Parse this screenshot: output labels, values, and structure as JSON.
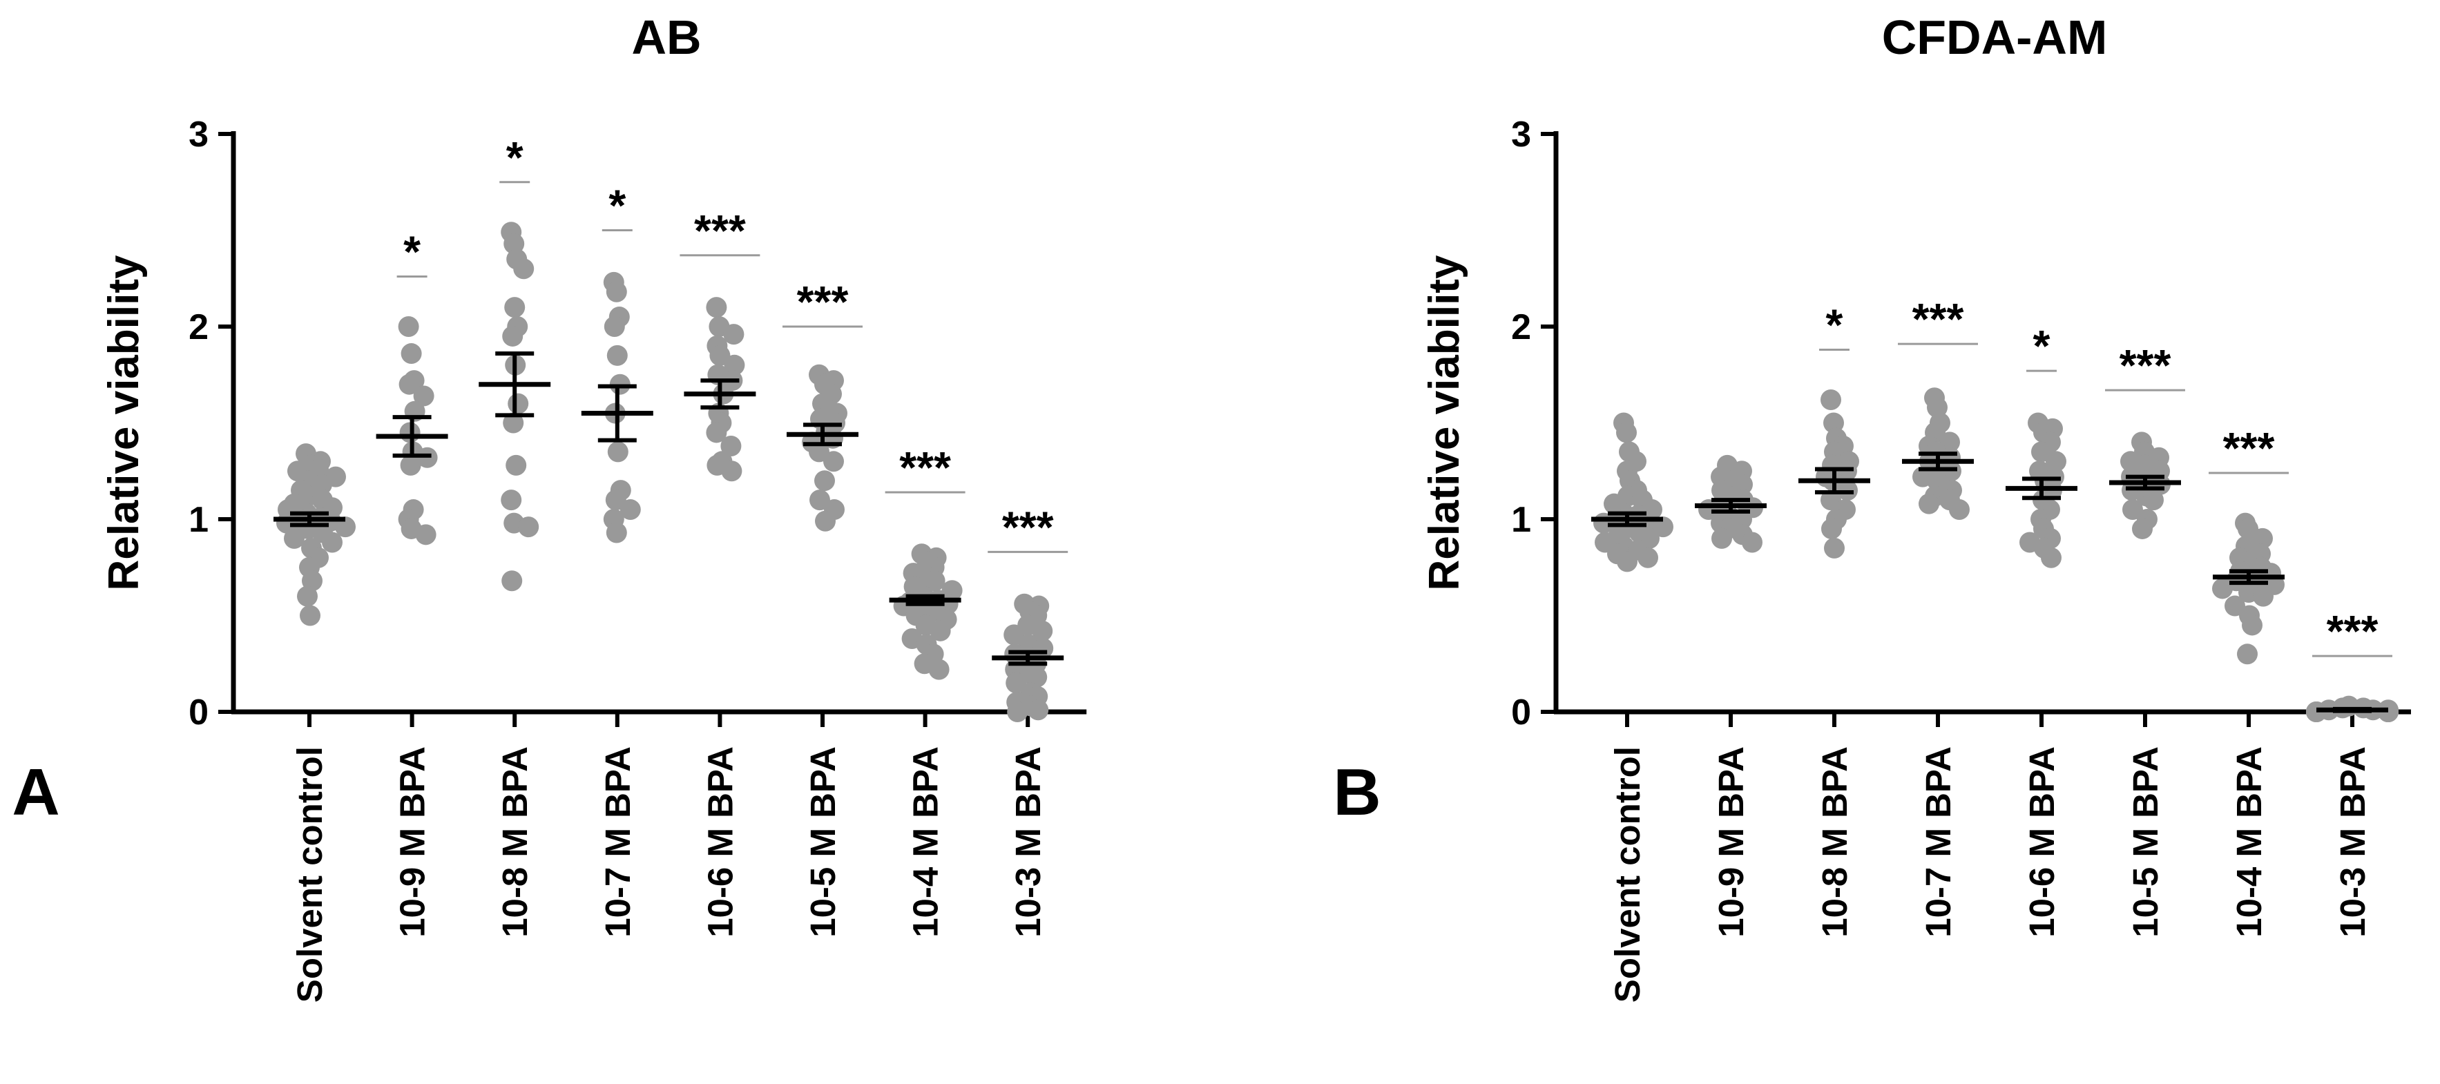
{
  "chart_data": [
    {
      "panel_label": "A",
      "title": "AB",
      "type": "scatter",
      "ylabel": "Relative viability",
      "ylim": [
        0,
        3
      ],
      "yticks": [
        "0",
        "1",
        "2",
        "3"
      ],
      "categories": [
        "Solvent control",
        "10-9 M BPA",
        "10-8 M BPA",
        "10-7 M BPA",
        "10-6 M BPA",
        "10-5 M BPA",
        "10-4 M BPA",
        "10-3 M BPA"
      ],
      "means": [
        1.0,
        1.43,
        1.7,
        1.55,
        1.65,
        1.44,
        0.58,
        0.28
      ],
      "sem": [
        0.03,
        0.1,
        0.16,
        0.14,
        0.07,
        0.05,
        0.02,
        0.03
      ],
      "significance": [
        "",
        "*",
        "*",
        "*",
        "***",
        "***",
        "***",
        "***"
      ],
      "sig_line_y": [
        null,
        2.26,
        2.75,
        2.5,
        2.37,
        2.0,
        1.14,
        0.83
      ],
      "points": [
        [
          1.34,
          1.3,
          1.28,
          1.26,
          1.25,
          1.22,
          1.2,
          1.18,
          1.15,
          1.12,
          1.1,
          1.08,
          1.06,
          1.05,
          1.03,
          1.01,
          1.0,
          0.99,
          0.98,
          0.96,
          0.95,
          0.93,
          0.9,
          0.88,
          0.85,
          0.8,
          0.75,
          0.68,
          0.6,
          0.5
        ],
        [
          2.0,
          1.86,
          1.72,
          1.7,
          1.64,
          1.56,
          1.45,
          1.35,
          1.32,
          1.28,
          1.05,
          1.0,
          0.95,
          0.92
        ],
        [
          2.49,
          2.43,
          2.35,
          2.3,
          2.1,
          2.0,
          1.95,
          1.8,
          1.6,
          1.5,
          1.28,
          1.1,
          0.98,
          0.96,
          0.68
        ],
        [
          2.23,
          2.18,
          2.05,
          2.0,
          1.85,
          1.7,
          1.55,
          1.35,
          1.15,
          1.1,
          1.05,
          1.0,
          0.93
        ],
        [
          2.1,
          2.0,
          1.96,
          1.9,
          1.85,
          1.8,
          1.75,
          1.72,
          1.65,
          1.55,
          1.5,
          1.45,
          1.38,
          1.3,
          1.28,
          1.25
        ],
        [
          1.75,
          1.72,
          1.7,
          1.65,
          1.6,
          1.55,
          1.52,
          1.5,
          1.45,
          1.42,
          1.4,
          1.35,
          1.3,
          1.2,
          1.1,
          1.05,
          0.99
        ],
        [
          0.82,
          0.8,
          0.78,
          0.75,
          0.72,
          0.7,
          0.68,
          0.65,
          0.63,
          0.6,
          0.58,
          0.57,
          0.56,
          0.55,
          0.53,
          0.52,
          0.5,
          0.48,
          0.45,
          0.42,
          0.38,
          0.35,
          0.3,
          0.25,
          0.22
        ],
        [
          0.56,
          0.55,
          0.52,
          0.5,
          0.45,
          0.42,
          0.4,
          0.35,
          0.33,
          0.3,
          0.28,
          0.25,
          0.22,
          0.2,
          0.18,
          0.15,
          0.1,
          0.08,
          0.05,
          0.03,
          0.01,
          0.0
        ]
      ]
    },
    {
      "panel_label": "B",
      "title": "CFDA-AM",
      "type": "scatter",
      "ylabel": "Relative viability",
      "ylim": [
        0,
        3
      ],
      "yticks": [
        "0",
        "1",
        "2",
        "3"
      ],
      "categories": [
        "Solvent control",
        "10-9 M BPA",
        "10-8 M BPA",
        "10-7 M BPA",
        "10-6 M BPA",
        "10-5 M BPA",
        "10-4 M BPA",
        "10-3 M BPA"
      ],
      "means": [
        1.0,
        1.07,
        1.2,
        1.3,
        1.16,
        1.19,
        0.7,
        0.01
      ],
      "sem": [
        0.03,
        0.03,
        0.06,
        0.04,
        0.05,
        0.03,
        0.03,
        0.005
      ],
      "significance": [
        "",
        "",
        "*",
        "***",
        "*",
        "***",
        "***",
        "***"
      ],
      "sig_line_y": [
        null,
        null,
        1.88,
        1.91,
        1.77,
        1.67,
        1.24,
        0.29
      ],
      "points": [
        [
          1.5,
          1.45,
          1.35,
          1.3,
          1.25,
          1.2,
          1.15,
          1.12,
          1.1,
          1.08,
          1.05,
          1.03,
          1.02,
          1.0,
          0.99,
          0.98,
          0.96,
          0.95,
          0.93,
          0.92,
          0.9,
          0.88,
          0.86,
          0.84,
          0.82,
          0.8,
          0.78
        ],
        [
          1.28,
          1.25,
          1.22,
          1.2,
          1.18,
          1.15,
          1.12,
          1.1,
          1.08,
          1.06,
          1.05,
          1.03,
          1.0,
          0.98,
          0.95,
          0.92,
          0.9,
          0.88
        ],
        [
          1.62,
          1.5,
          1.42,
          1.38,
          1.35,
          1.3,
          1.28,
          1.25,
          1.22,
          1.2,
          1.15,
          1.1,
          1.05,
          1.0,
          0.95,
          0.85
        ],
        [
          1.63,
          1.58,
          1.5,
          1.45,
          1.4,
          1.38,
          1.35,
          1.32,
          1.3,
          1.28,
          1.25,
          1.22,
          1.2,
          1.15,
          1.12,
          1.1,
          1.08,
          1.05
        ],
        [
          1.5,
          1.47,
          1.45,
          1.4,
          1.35,
          1.3,
          1.25,
          1.22,
          1.2,
          1.15,
          1.1,
          1.05,
          1.0,
          0.95,
          0.9,
          0.88,
          0.85,
          0.8
        ],
        [
          1.4,
          1.35,
          1.32,
          1.3,
          1.28,
          1.25,
          1.22,
          1.2,
          1.18,
          1.15,
          1.12,
          1.1,
          1.05,
          1.0,
          0.95
        ],
        [
          0.98,
          0.95,
          0.9,
          0.86,
          0.82,
          0.8,
          0.78,
          0.75,
          0.73,
          0.72,
          0.7,
          0.69,
          0.68,
          0.66,
          0.64,
          0.62,
          0.6,
          0.55,
          0.5,
          0.45,
          0.3
        ],
        [
          0.03,
          0.02,
          0.02,
          0.01,
          0.01,
          0.01,
          0.0,
          0.0,
          0.0,
          0.0,
          0.0,
          0.0,
          0.0,
          0.0,
          0.0,
          0.0,
          0.0,
          0.0
        ]
      ]
    }
  ],
  "colors": {
    "points": "#999999",
    "bars": "#000000",
    "sig_line": "#9a9a9a"
  }
}
